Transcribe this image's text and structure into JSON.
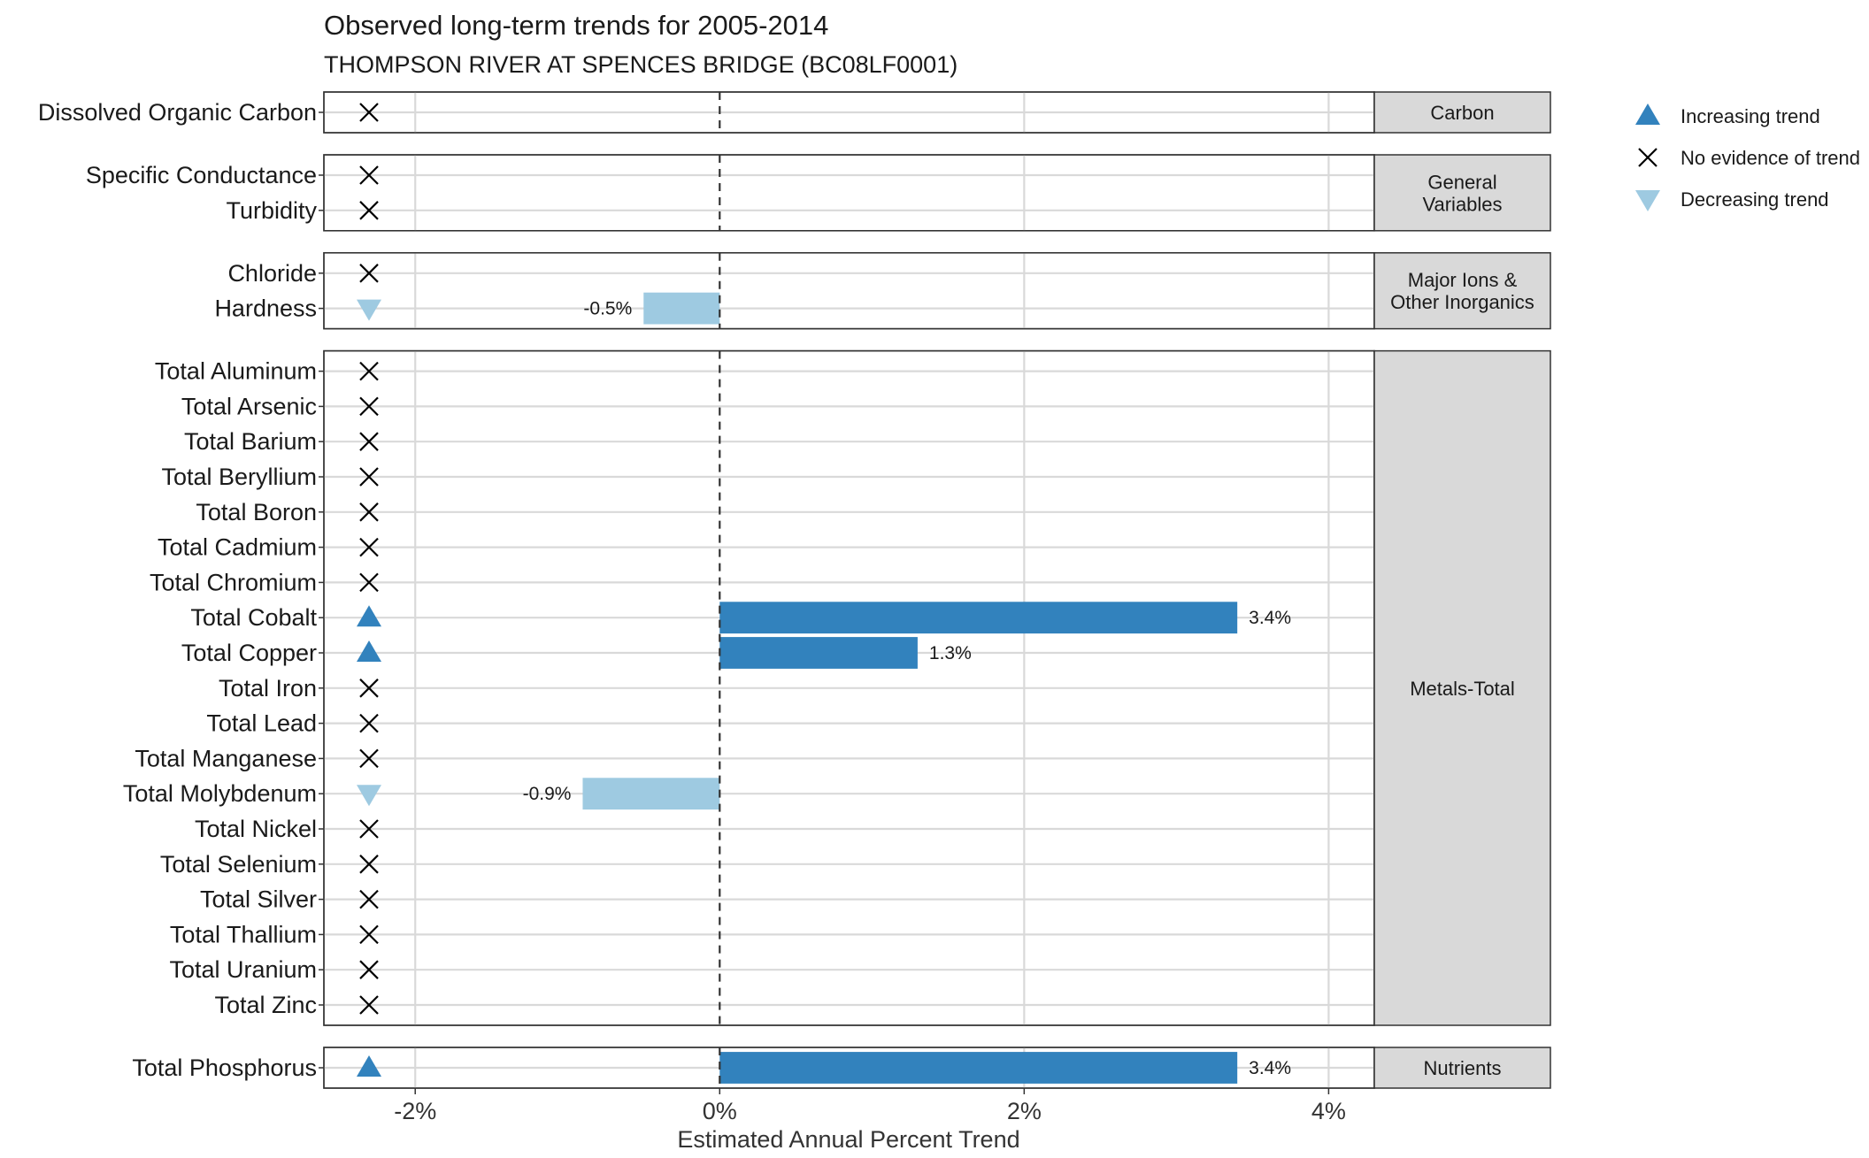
{
  "chart_data": {
    "type": "bar",
    "title": "Observed long-term trends for 2005-2014",
    "subtitle": "THOMPSON RIVER AT SPENCES BRIDGE (BC08LF0001)",
    "xlabel": "Estimated Annual Percent Trend",
    "xlim": [
      -2.6,
      4.3
    ],
    "x_ticks": [
      -2,
      0,
      2,
      4
    ],
    "x_tick_labels": [
      "-2%",
      "0%",
      "2%",
      "4%"
    ],
    "reference_line": 0,
    "grid": true,
    "legend_position": "right",
    "colors": {
      "increasing": "#3282BD",
      "decreasing": "#9ECAE1",
      "no_trend": "#000000",
      "strip_fill": "#D9D9D9",
      "grid": "#D9D9D9"
    },
    "legend": [
      {
        "key": "increasing",
        "label": "Increasing trend",
        "icon": "triangle-up-icon"
      },
      {
        "key": "none",
        "label": "No evidence of trend",
        "icon": "cross-icon"
      },
      {
        "key": "decreasing",
        "label": "Decreasing trend",
        "icon": "triangle-down-icon"
      }
    ],
    "facets": [
      {
        "label_lines": [
          "Carbon"
        ],
        "rows": [
          {
            "variable": "Dissolved Organic Carbon",
            "trend": "none"
          }
        ]
      },
      {
        "label_lines": [
          "General",
          "Variables"
        ],
        "rows": [
          {
            "variable": "Specific Conductance",
            "trend": "none"
          },
          {
            "variable": "Turbidity",
            "trend": "none"
          }
        ]
      },
      {
        "label_lines": [
          "Major Ions &",
          "Other Inorganics"
        ],
        "rows": [
          {
            "variable": "Chloride",
            "trend": "none"
          },
          {
            "variable": "Hardness",
            "trend": "decreasing",
            "value": -0.5,
            "value_label": "-0.5%"
          }
        ]
      },
      {
        "label_lines": [
          "Metals-Total"
        ],
        "rows": [
          {
            "variable": "Total Aluminum",
            "trend": "none"
          },
          {
            "variable": "Total Arsenic",
            "trend": "none"
          },
          {
            "variable": "Total Barium",
            "trend": "none"
          },
          {
            "variable": "Total Beryllium",
            "trend": "none"
          },
          {
            "variable": "Total Boron",
            "trend": "none"
          },
          {
            "variable": "Total Cadmium",
            "trend": "none"
          },
          {
            "variable": "Total Chromium",
            "trend": "none"
          },
          {
            "variable": "Total Cobalt",
            "trend": "increasing",
            "value": 3.4,
            "value_label": "3.4%"
          },
          {
            "variable": "Total Copper",
            "trend": "increasing",
            "value": 1.3,
            "value_label": "1.3%"
          },
          {
            "variable": "Total Iron",
            "trend": "none"
          },
          {
            "variable": "Total Lead",
            "trend": "none"
          },
          {
            "variable": "Total Manganese",
            "trend": "none"
          },
          {
            "variable": "Total Molybdenum",
            "trend": "decreasing",
            "value": -0.9,
            "value_label": "-0.9%"
          },
          {
            "variable": "Total Nickel",
            "trend": "none"
          },
          {
            "variable": "Total Selenium",
            "trend": "none"
          },
          {
            "variable": "Total Silver",
            "trend": "none"
          },
          {
            "variable": "Total Thallium",
            "trend": "none"
          },
          {
            "variable": "Total Uranium",
            "trend": "none"
          },
          {
            "variable": "Total Zinc",
            "trend": "none"
          }
        ]
      },
      {
        "label_lines": [
          "Nutrients"
        ],
        "rows": [
          {
            "variable": "Total Phosphorus",
            "trend": "increasing",
            "value": 3.4,
            "value_label": "3.4%"
          }
        ]
      }
    ]
  }
}
